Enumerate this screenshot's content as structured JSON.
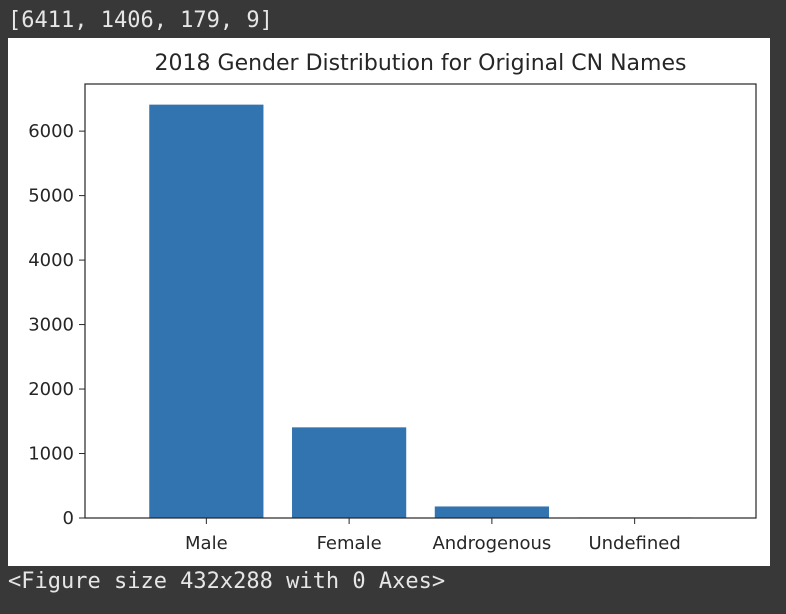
{
  "output": {
    "list_text": "[6411, 1406, 179, 9]",
    "figure_text": "<Figure size 432x288 with 0 Axes>"
  },
  "colors": {
    "bar": "#3274b0",
    "background": "#383838",
    "axes": "#262626"
  },
  "chart_data": {
    "type": "bar",
    "title": "2018 Gender Distribution for Original CN Names",
    "xlabel": "",
    "ylabel": "",
    "categories": [
      "Male",
      "Female",
      "Androgenous",
      "Undefined"
    ],
    "values": [
      6411,
      1406,
      179,
      9
    ],
    "ylim": [
      0,
      6731
    ],
    "yticks": [
      0,
      1000,
      2000,
      3000,
      4000,
      5000,
      6000
    ],
    "ytick_labels": [
      "0",
      "1000",
      "2000",
      "3000",
      "4000",
      "5000",
      "6000"
    ],
    "grid": false,
    "legend": "none"
  }
}
